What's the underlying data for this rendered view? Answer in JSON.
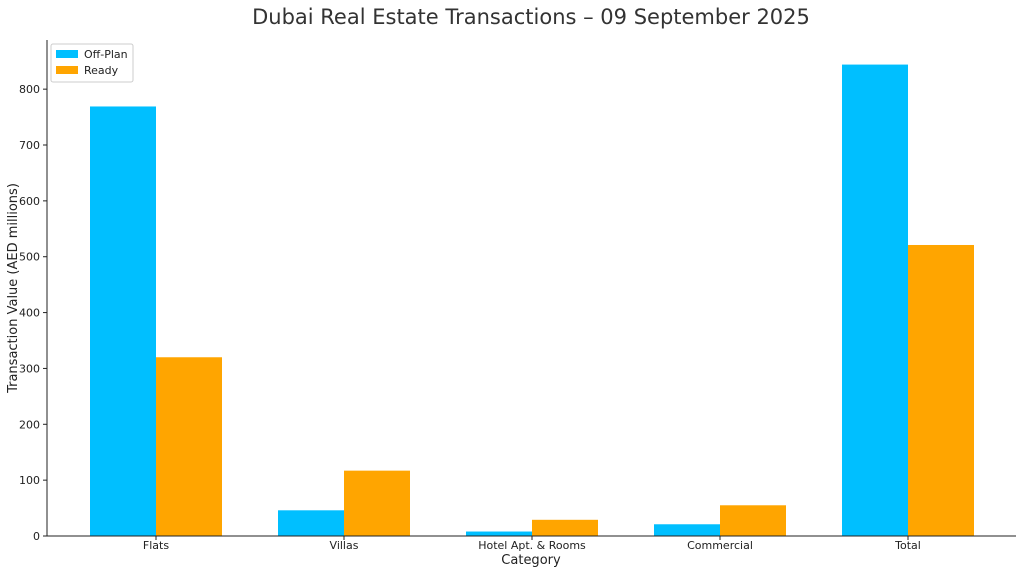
{
  "chart_data": {
    "type": "bar",
    "title": "Dubai Real Estate Transactions – 09 September 2025",
    "xlabel": "Category",
    "ylabel": "Transaction Value (AED millions)",
    "categories": [
      "Flats",
      "Villas",
      "Hotel Apt. & Rooms",
      "Commercial",
      "Total"
    ],
    "series": [
      {
        "name": "Off-Plan",
        "color": "#00BFFF",
        "values": [
          769,
          46,
          8,
          21,
          844
        ]
      },
      {
        "name": "Ready",
        "color": "#FFA500",
        "values": [
          320,
          117,
          29,
          55,
          521
        ]
      }
    ],
    "ylim": [
      0,
      888
    ],
    "yticks": [
      0,
      100,
      200,
      300,
      400,
      500,
      600,
      700,
      800
    ],
    "grid": false,
    "legend": "top-left"
  }
}
